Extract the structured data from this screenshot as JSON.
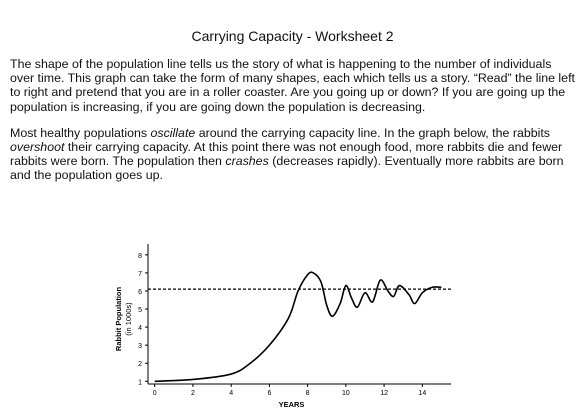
{
  "header": {
    "title": "Carrying Capacity - Worksheet 2"
  },
  "paragraphs": [
    [
      {
        "text": "The shape of the population line tells us the story of what is happening to the number of individuals over time. This graph can take the form of many shapes, each which tells us a story. “Read” the line left to right and pretend that you are in a roller coaster. Are you going up or down? If you are going up the population is increasing, if you are going down the population is decreasing."
      }
    ],
    [
      {
        "text": "Most healthy populations "
      },
      {
        "text": "oscillate",
        "italic": true
      },
      {
        "text": " around the carrying capacity line. In the graph below, the rabbits "
      },
      {
        "text": "overshoot",
        "italic": true
      },
      {
        "text": " their carrying capacity. At this point there was not enough food, more rabbits die and fewer rabbits were born. The population then "
      },
      {
        "text": "crashes",
        "italic": true
      },
      {
        "text": " (decreases rapidly). Eventually more rabbits are born and the population goes up."
      }
    ]
  ],
  "chart_data": {
    "type": "line",
    "x_label": "YEARS",
    "y_label": [
      "Rabbit Population",
      "(in 1000s)"
    ],
    "x": [
      0,
      2,
      4,
      5,
      6,
      7,
      7.5,
      8,
      8.3,
      8.7,
      9,
      9.3,
      9.7,
      10,
      10.3,
      10.6,
      11,
      11.4,
      11.8,
      12.2,
      12.5,
      12.8,
      13.3,
      13.6,
      14,
      14.5,
      15
    ],
    "series": [
      {
        "color": "#000000",
        "values": [
          1.0,
          1.1,
          1.4,
          2.0,
          3.0,
          4.5,
          6.0,
          6.9,
          7.0,
          6.5,
          5.2,
          4.6,
          5.3,
          6.3,
          5.6,
          5.1,
          5.9,
          5.4,
          6.6,
          6.0,
          5.7,
          6.3,
          5.8,
          5.3,
          5.9,
          6.2,
          6.2
        ]
      }
    ],
    "carrying_capacity": 6.1,
    "xlim": [
      -0.35,
      15.5
    ],
    "ylim": [
      0.85,
      8.6
    ],
    "xticks": [
      0,
      2,
      4,
      6,
      8,
      10,
      12,
      14
    ],
    "yticks": [
      1,
      2,
      3,
      4,
      5,
      6,
      7,
      8
    ]
  }
}
